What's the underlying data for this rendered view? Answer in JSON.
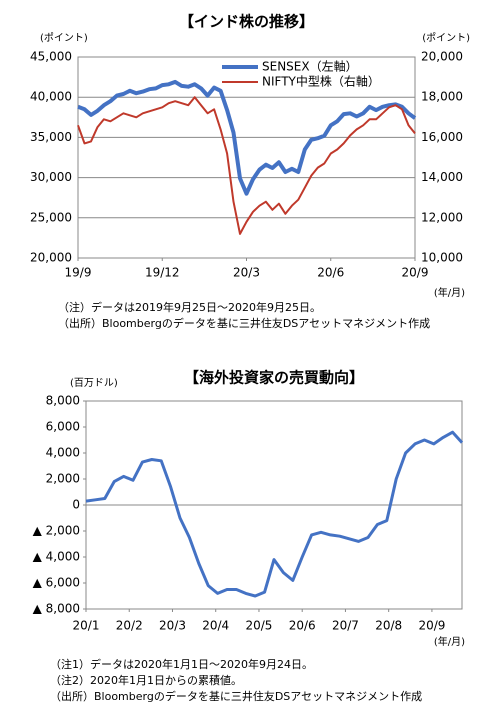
{
  "chart_data": [
    {
      "type": "line",
      "title": "【インド株の推移】",
      "y_label": "(ポイント)",
      "y2_label": "(ポイント)",
      "x_unit": "(年/月)",
      "xlim": [
        0,
        52
      ],
      "xticks": [
        {
          "value": 0,
          "label": "19/9"
        },
        {
          "value": 13,
          "label": "19/12"
        },
        {
          "value": 26,
          "label": "20/3"
        },
        {
          "value": 39,
          "label": "20/6"
        },
        {
          "value": 52,
          "label": "20/9"
        }
      ],
      "ylim": [
        20000,
        45000
      ],
      "yticks": [
        {
          "value": 20000,
          "label": "20,000"
        },
        {
          "value": 25000,
          "label": "25,000"
        },
        {
          "value": 30000,
          "label": "30,000"
        },
        {
          "value": 35000,
          "label": "35,000"
        },
        {
          "value": 40000,
          "label": "40,000"
        },
        {
          "value": 45000,
          "label": "45,000"
        }
      ],
      "y2lim": [
        10000,
        20000
      ],
      "y2ticks": [
        {
          "value": 10000,
          "label": "10,000"
        },
        {
          "value": 12000,
          "label": "12,000"
        },
        {
          "value": 14000,
          "label": "14,000"
        },
        {
          "value": 16000,
          "label": "16,000"
        },
        {
          "value": 18000,
          "label": "18,000"
        },
        {
          "value": 20000,
          "label": "20,000"
        }
      ],
      "grid": true,
      "series": [
        {
          "name": "SENSEX（左軸）",
          "color": "#4472c4",
          "width": 4,
          "values": [
            38800,
            38500,
            37800,
            38300,
            39000,
            39500,
            40200,
            40400,
            40800,
            40500,
            40700,
            41000,
            41100,
            41500,
            41600,
            41900,
            41400,
            41300,
            41600,
            41100,
            40200,
            41200,
            40800,
            38400,
            35600,
            29900,
            28000,
            29800,
            31000,
            31600,
            31200,
            31900,
            30700,
            31100,
            30700,
            33500,
            34700,
            34900,
            35200,
            36500,
            37000,
            37900,
            38000,
            37600,
            38000,
            38800,
            38400,
            38800,
            39000,
            39100,
            38800,
            38000,
            37400
          ]
        },
        {
          "name": "NIFTY中型株（右軸）",
          "color": "#c0392b",
          "width": 2,
          "axis": "y2",
          "values": [
            16600,
            15700,
            15800,
            16500,
            16900,
            16800,
            17000,
            17200,
            17100,
            17000,
            17200,
            17300,
            17400,
            17500,
            17700,
            17800,
            17700,
            17600,
            18000,
            17600,
            17200,
            17400,
            16400,
            15200,
            12800,
            11200,
            11800,
            12300,
            12600,
            12800,
            12400,
            12700,
            12200,
            12600,
            12900,
            13500,
            14100,
            14500,
            14700,
            15200,
            15400,
            15700,
            16100,
            16400,
            16600,
            16900,
            16900,
            17200,
            17500,
            17600,
            17400,
            16600,
            16200
          ]
        }
      ],
      "legend": "upper right",
      "notes": [
        "（注）データは2019年9月25日～2020年9月25日。",
        "（出所）Bloombergのデータを基に三井住友DSアセットマネジメント作成"
      ]
    },
    {
      "type": "line",
      "title": "【海外投資家の売買動向】",
      "y_label": "(百万ドル)",
      "x_unit": "(年/月)",
      "xlim": [
        0,
        40
      ],
      "xticks": [
        {
          "value": 0,
          "label": "20/1"
        },
        {
          "value": 4.6,
          "label": "20/2"
        },
        {
          "value": 9.2,
          "label": "20/3"
        },
        {
          "value": 13.8,
          "label": "20/4"
        },
        {
          "value": 18.4,
          "label": "20/5"
        },
        {
          "value": 23,
          "label": "20/6"
        },
        {
          "value": 27.6,
          "label": "20/7"
        },
        {
          "value": 32.2,
          "label": "20/8"
        },
        {
          "value": 36.8,
          "label": "20/9"
        }
      ],
      "ylim": [
        -8000,
        8000
      ],
      "yticks": [
        {
          "value": -8000,
          "label": "▲ 8,000"
        },
        {
          "value": -6000,
          "label": "▲ 6,000"
        },
        {
          "value": -4000,
          "label": "▲ 4,000"
        },
        {
          "value": -2000,
          "label": "▲ 2,000"
        },
        0,
        {
          "value": 2000,
          "label": "2,000"
        },
        {
          "value": 4000,
          "label": "4,000"
        },
        {
          "value": 6000,
          "label": "6,000"
        },
        {
          "value": 8000,
          "label": "8,000"
        }
      ],
      "grid": false,
      "series": [
        {
          "name": "海外投資家",
          "color": "#4472c4",
          "width": 3,
          "values": [
            300,
            400,
            500,
            1800,
            2200,
            1900,
            3300,
            3500,
            3400,
            1400,
            -1000,
            -2500,
            -4500,
            -6200,
            -6800,
            -6500,
            -6500,
            -6800,
            -7000,
            -6700,
            -4200,
            -5200,
            -5800,
            -4000,
            -2300,
            -2100,
            -2300,
            -2400,
            -2600,
            -2800,
            -2500,
            -1500,
            -1200,
            2000,
            4000,
            4700,
            5000,
            4700,
            5200,
            5600,
            4800
          ]
        }
      ],
      "notes": [
        "（注1）データは2020年1月1日～2020年9月24日。",
        "（注2）2020年1月1日からの累積値。",
        "（出所）Bloombergのデータを基に三井住友DSアセットマネジメント作成"
      ]
    }
  ]
}
